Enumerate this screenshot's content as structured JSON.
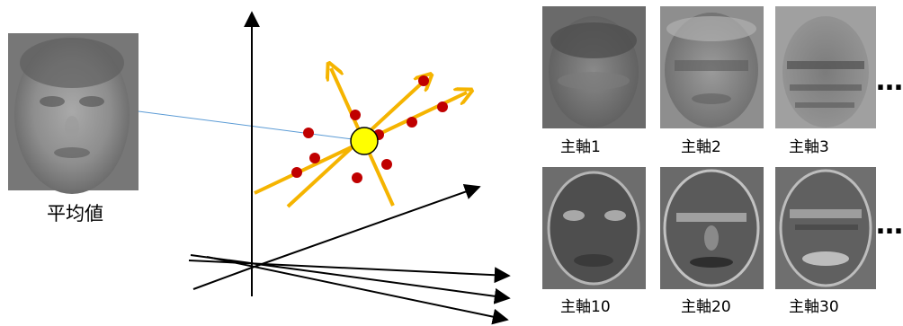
{
  "mean": {
    "label": "平均値"
  },
  "principal_axes": [
    {
      "label": "主軸1"
    },
    {
      "label": "主軸2"
    },
    {
      "label": "主軸3"
    },
    {
      "label": "主軸10"
    },
    {
      "label": "主軸20"
    },
    {
      "label": "主軸30"
    }
  ],
  "ellipsis": "…",
  "colors": {
    "axis_arrow": "#F5B400",
    "data_point": "#C00000",
    "mean_point": "#FFFF00",
    "connector": "#5B9BD5",
    "face_dark": "#3a3a3a",
    "face_mid": "#7a7a7a"
  }
}
